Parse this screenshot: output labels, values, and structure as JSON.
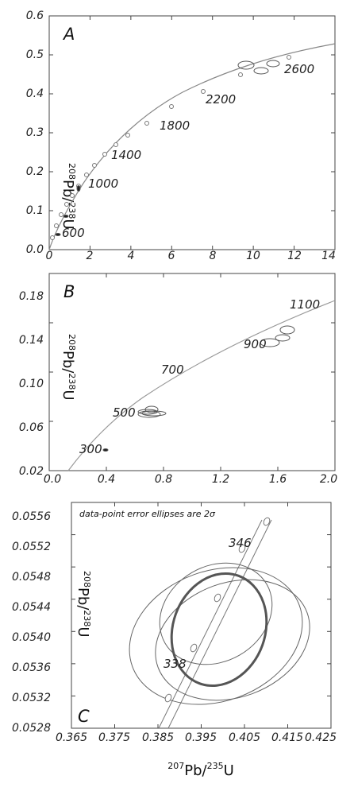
{
  "chart_data": [
    {
      "type": "scatter",
      "panel_label": "A",
      "xlabel": "",
      "ylabel_parts": {
        "sup": "208",
        "main": "Pb/",
        "sup2": "238",
        "tail": "U"
      },
      "xlim": [
        0,
        14
      ],
      "ylim": [
        0,
        0.6
      ],
      "x_ticks": [
        "0",
        "2",
        "4",
        "6",
        "8",
        "10",
        "12",
        "14"
      ],
      "y_ticks": [
        "0.0",
        "0.1",
        "0.2",
        "0.3",
        "0.4",
        "0.5",
        "0.6"
      ],
      "concordia_age_labels": [
        "600",
        "1000",
        "1400",
        "1800",
        "2200",
        "2600"
      ],
      "grid": false
    },
    {
      "type": "scatter",
      "panel_label": "B",
      "xlabel": "",
      "ylabel_parts": {
        "sup": "208",
        "main": "Pb/",
        "sup2": "238",
        "tail": "U"
      },
      "xlim": [
        0,
        2
      ],
      "ylim": [
        0.02,
        0.2
      ],
      "x_ticks": [
        "0.0",
        "0.4",
        "0.8",
        "1.2",
        "1.6",
        "2.0"
      ],
      "y_ticks": [
        "0.02",
        "0.06",
        "0.10",
        "0.14",
        "0.18"
      ],
      "concordia_age_labels": [
        "300",
        "500",
        "700",
        "900",
        "1100"
      ],
      "grid": false
    },
    {
      "type": "scatter",
      "panel_label": "C",
      "annotation": "data-point error ellipses are 2σ",
      "xlabel_parts": {
        "sup": "207",
        "main": "Pb/",
        "sup2": "235",
        "tail": "U"
      },
      "ylabel_parts": {
        "sup": "208",
        "main": "Pb/",
        "sup2": "238",
        "tail": "U"
      },
      "xlim": [
        0.365,
        0.425
      ],
      "ylim": [
        0.0528,
        0.0558
      ],
      "x_ticks": [
        "0.365",
        "0.375",
        "0.385",
        "0.395",
        "0.405",
        "0.415",
        "0.425"
      ],
      "y_ticks": [
        "0.0528",
        "0.0532",
        "0.0536",
        "0.0540",
        "0.0544",
        "0.0548",
        "0.0552",
        "0.0556"
      ],
      "concordia_age_labels": [
        "338",
        "346"
      ],
      "grid": false
    }
  ]
}
